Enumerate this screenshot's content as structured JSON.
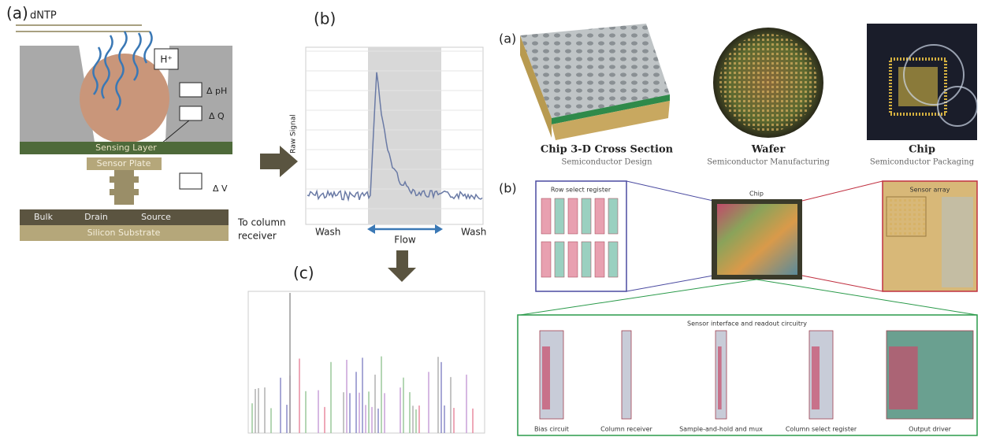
{
  "left_figure": {
    "panel_a": {
      "label": "(a)",
      "dntp": "dNTP",
      "proton": "H⁺",
      "delta_ph": "Δ pH",
      "delta_q": "Δ Q",
      "sensing_layer": "Sensing Layer",
      "sensor_plate": "Sensor Plate",
      "delta_v": "Δ V",
      "bulk": "Bulk",
      "drain": "Drain",
      "source": "Source",
      "substrate": "Silicon Substrate",
      "receiver_line1": "To column",
      "receiver_line2": "receiver"
    },
    "panel_b": {
      "label": "(b)",
      "y_axis": "Raw Signal",
      "wash_left": "Wash",
      "flow": "Flow",
      "wash_right": "Wash"
    },
    "panel_c": {
      "label": "(c)"
    }
  },
  "right_figure": {
    "panel_a": {
      "label": "(a)",
      "items": [
        {
          "title": "Chip 3-D Cross Section",
          "subtitle": "Semiconductor Design"
        },
        {
          "title": "Wafer",
          "subtitle": "Semiconductor Manufacturing"
        },
        {
          "title": "Chip",
          "subtitle": "Semiconductor Packaging"
        }
      ]
    },
    "panel_b": {
      "label": "(b)",
      "row_select": "Row select register",
      "chip": "Chip",
      "sensor_array": "Sensor array",
      "interface_title": "Sensor interface and readout circuitry",
      "components": [
        "Bias circuit",
        "Column receiver",
        "Sample-and-hold and mux",
        "Column select register",
        "Output driver"
      ]
    }
  }
}
